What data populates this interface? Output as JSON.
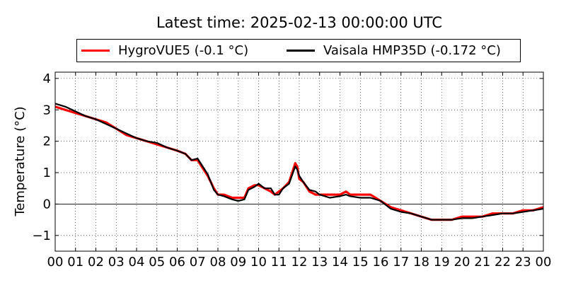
{
  "chart_data": {
    "type": "line",
    "title": "Latest time: 2025-02-13 00:00:00 UTC",
    "xlabel": "",
    "ylabel": "Temperature (°C)",
    "xlim": [
      0,
      24
    ],
    "ylim": [
      -1.5,
      4.2
    ],
    "xticks": [
      "00",
      "01",
      "02",
      "03",
      "04",
      "05",
      "06",
      "07",
      "08",
      "09",
      "10",
      "11",
      "12",
      "13",
      "14",
      "15",
      "16",
      "17",
      "18",
      "19",
      "20",
      "21",
      "22",
      "23",
      "00"
    ],
    "yticks": [
      -1,
      0,
      1,
      2,
      3,
      4
    ],
    "grid": true,
    "zero_line": true,
    "legend_position": "top",
    "series": [
      {
        "name": "HygroVUE5 (-0.1 °C)",
        "color": "#ff0000",
        "x": [
          0,
          0.5,
          1,
          1.5,
          2,
          2.5,
          3,
          3.5,
          4,
          4.5,
          5,
          5.5,
          6,
          6.4,
          6.7,
          7,
          7.2,
          7.5,
          7.8,
          8,
          8.3,
          8.7,
          9,
          9.3,
          9.5,
          9.8,
          10,
          10.3,
          10.6,
          10.8,
          11,
          11.2,
          11.5,
          11.8,
          11.9,
          12,
          12.2,
          12.5,
          12.8,
          13,
          13.5,
          14,
          14.3,
          14.5,
          15,
          15.5,
          16,
          16.5,
          17,
          17.5,
          18,
          18.5,
          19,
          19.5,
          20,
          20.5,
          21,
          21.5,
          22,
          22.5,
          23,
          23.5,
          24
        ],
        "values": [
          3.1,
          3.0,
          2.9,
          2.8,
          2.7,
          2.6,
          2.4,
          2.2,
          2.1,
          2.0,
          1.9,
          1.8,
          1.7,
          1.6,
          1.4,
          1.4,
          1.2,
          0.9,
          0.5,
          0.3,
          0.3,
          0.2,
          0.2,
          0.2,
          0.5,
          0.6,
          0.6,
          0.5,
          0.4,
          0.3,
          0.4,
          0.5,
          0.7,
          1.3,
          1.2,
          0.8,
          0.7,
          0.4,
          0.3,
          0.3,
          0.3,
          0.3,
          0.4,
          0.3,
          0.3,
          0.3,
          0.1,
          -0.1,
          -0.2,
          -0.3,
          -0.4,
          -0.5,
          -0.5,
          -0.5,
          -0.4,
          -0.4,
          -0.4,
          -0.3,
          -0.3,
          -0.3,
          -0.2,
          -0.2,
          -0.1
        ]
      },
      {
        "name": "Vaisala HMP35D (-0.172 °C)",
        "color": "#000000",
        "x": [
          0,
          0.5,
          1,
          1.5,
          2,
          2.5,
          3,
          3.5,
          4,
          4.5,
          5,
          5.5,
          6,
          6.4,
          6.7,
          7,
          7.2,
          7.5,
          7.8,
          8,
          8.3,
          8.7,
          9,
          9.3,
          9.5,
          9.8,
          10,
          10.3,
          10.6,
          10.8,
          11,
          11.2,
          11.5,
          11.8,
          11.9,
          12,
          12.2,
          12.5,
          12.8,
          13,
          13.5,
          14,
          14.3,
          14.5,
          15,
          15.5,
          16,
          16.5,
          17,
          17.5,
          18,
          18.5,
          19,
          19.5,
          20,
          20.5,
          21,
          21.5,
          22,
          22.5,
          23,
          23.5,
          24
        ],
        "values": [
          3.2,
          3.1,
          2.95,
          2.8,
          2.7,
          2.55,
          2.4,
          2.25,
          2.1,
          2.0,
          1.95,
          1.8,
          1.7,
          1.6,
          1.4,
          1.45,
          1.25,
          0.95,
          0.45,
          0.3,
          0.25,
          0.15,
          0.1,
          0.15,
          0.45,
          0.55,
          0.65,
          0.5,
          0.5,
          0.3,
          0.3,
          0.5,
          0.65,
          1.2,
          1.1,
          0.9,
          0.7,
          0.45,
          0.4,
          0.3,
          0.2,
          0.25,
          0.3,
          0.25,
          0.2,
          0.2,
          0.1,
          -0.15,
          -0.25,
          -0.3,
          -0.4,
          -0.5,
          -0.5,
          -0.5,
          -0.45,
          -0.45,
          -0.4,
          -0.35,
          -0.3,
          -0.3,
          -0.25,
          -0.2,
          -0.15
        ]
      }
    ]
  }
}
